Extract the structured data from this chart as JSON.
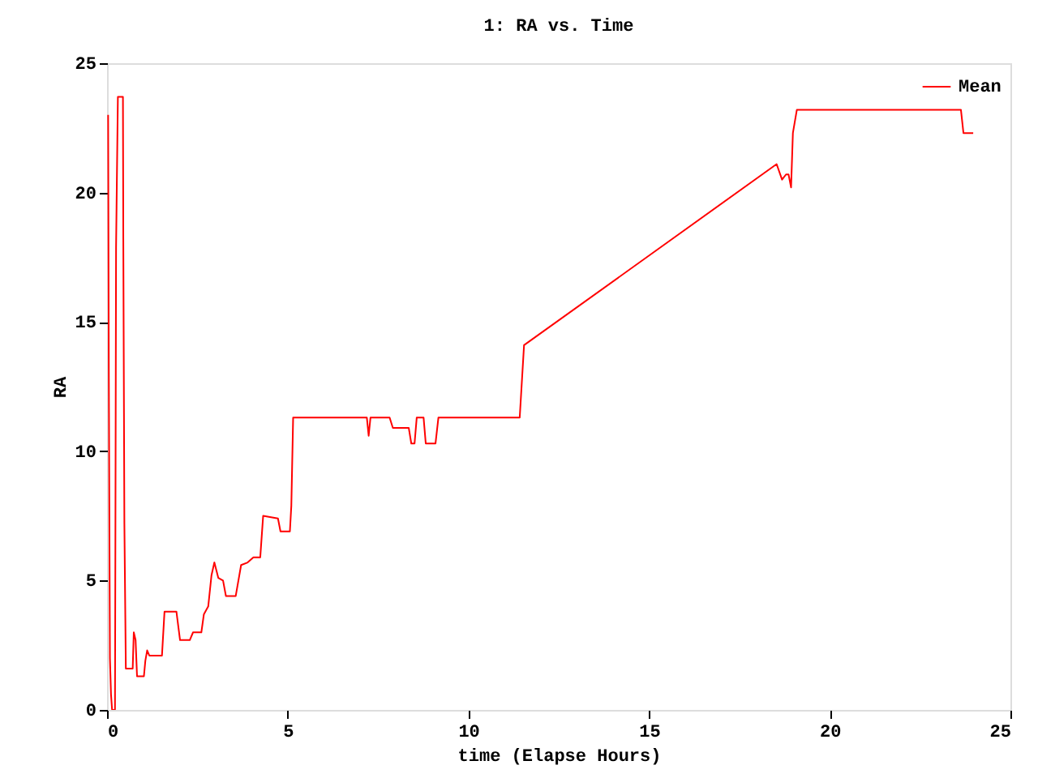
{
  "chart_data": {
    "type": "step",
    "title": "1: RA vs. Time",
    "xlabel": "time (Elapse Hours)",
    "ylabel": "RA",
    "x": [
      0.03,
      0.05,
      0.08,
      0.11,
      0.14,
      0.22,
      0.23,
      0.25,
      0.3,
      0.44,
      0.45,
      0.48,
      0.52,
      0.71,
      0.74,
      0.79,
      0.83,
      1.02,
      1.06,
      1.11,
      1.17,
      1.52,
      1.59,
      1.92,
      2.02,
      2.29,
      2.38,
      2.61,
      2.68,
      2.8,
      2.89,
      2.97,
      3.08,
      3.21,
      3.29,
      3.56,
      3.71,
      3.89,
      4.05,
      4.24,
      4.32,
      4.73,
      4.8,
      5.06,
      5.1,
      5.15,
      7.19,
      7.24,
      7.29,
      7.82,
      7.91,
      8.35,
      8.42,
      8.51,
      8.57,
      8.76,
      8.82,
      9.09,
      9.17,
      11.42,
      11.54,
      18.53,
      18.68,
      18.79,
      18.86,
      18.93,
      18.98,
      19.09,
      23.63,
      23.7,
      23.97
    ],
    "series": [
      {
        "name": "Mean",
        "color": "#ff0000",
        "values": [
          23.0,
          12.8,
          2.0,
          0.6,
          0,
          0,
          5.9,
          17.9,
          23.7,
          23.7,
          18.2,
          7.2,
          1.6,
          1.6,
          3.0,
          2.7,
          1.3,
          1.3,
          1.9,
          2.3,
          2.1,
          2.1,
          3.8,
          3.8,
          2.7,
          2.7,
          3.0,
          3.0,
          3.7,
          4.0,
          5.2,
          5.7,
          5.1,
          5.0,
          4.4,
          4.4,
          5.6,
          5.7,
          5.9,
          5.9,
          7.5,
          7.4,
          6.9,
          6.9,
          7.9,
          11.3,
          11.3,
          10.6,
          11.3,
          11.3,
          10.9,
          10.9,
          10.3,
          10.3,
          11.3,
          11.3,
          10.3,
          10.3,
          11.3,
          11.3,
          14.1,
          21.1,
          20.5,
          20.7,
          20.7,
          20.2,
          22.3,
          23.2,
          23.2,
          22.3,
          22.3
        ]
      }
    ],
    "xlim": [
      0,
      25
    ],
    "ylim": [
      0,
      25
    ],
    "xticks": [
      0,
      5,
      10,
      15,
      20,
      25
    ],
    "yticks": [
      0,
      5,
      10,
      15,
      20,
      25
    ],
    "legend": "top right"
  }
}
